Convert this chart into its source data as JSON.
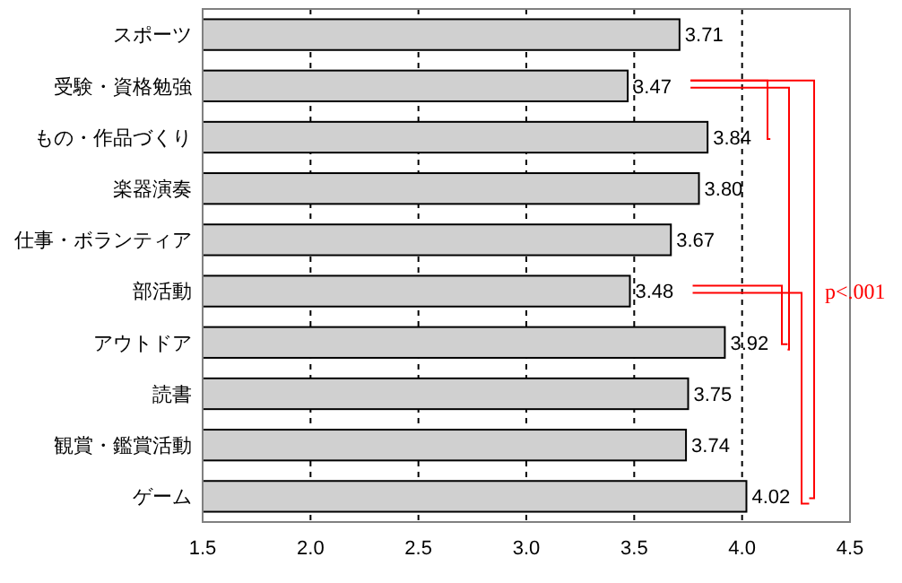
{
  "chart_data": {
    "type": "bar",
    "orientation": "horizontal",
    "categories": [
      "スポーツ",
      "受験・資格勉強",
      "もの・作品づくり",
      "楽器演奏",
      "仕事・ボランティア",
      "部活動",
      "アウトドア",
      "読書",
      "観賞・鑑賞活動",
      "ゲーム"
    ],
    "values": [
      3.71,
      3.47,
      3.84,
      3.8,
      3.67,
      3.48,
      3.92,
      3.75,
      3.74,
      4.02
    ],
    "value_labels": [
      "3.71",
      "3.47",
      "3.84",
      "3.80",
      "3.67",
      "3.48",
      "3.92",
      "3.75",
      "3.74",
      "4.02"
    ],
    "color": "#d0d0d0",
    "xlim": [
      1.5,
      4.5
    ],
    "xticks": [
      {
        "value": 1.5,
        "label": "1.5"
      },
      {
        "value": 2,
        "label": "2.0"
      },
      {
        "value": 2.5,
        "label": "2.5"
      },
      {
        "value": 3,
        "label": "3.0"
      },
      {
        "value": 3.5,
        "label": "3.5"
      },
      {
        "value": 4,
        "label": "4.0"
      },
      {
        "value": 4.5,
        "label": "4.5"
      }
    ],
    "grid": "x",
    "annotations": [
      "p<.001"
    ]
  }
}
